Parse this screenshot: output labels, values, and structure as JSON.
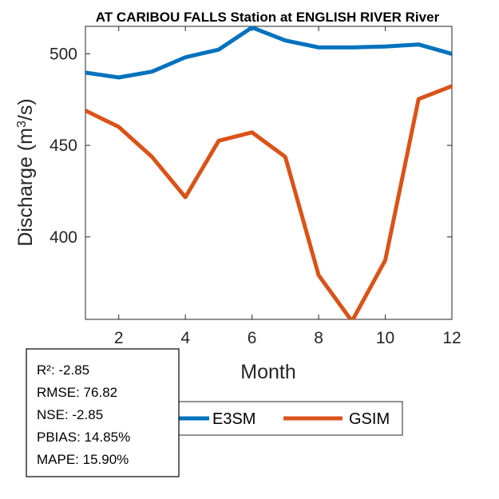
{
  "chart_data": {
    "type": "line",
    "title": "AT CARIBOU FALLS  Station at  ENGLISH RIVER  River",
    "xlabel": "Month",
    "ylabel": "Discharge (m3/s)",
    "ylabel_parts": {
      "before": "Discharge (m",
      "sup": "3",
      "after": "/s)"
    },
    "xlim": [
      1,
      12
    ],
    "ylim": [
      355,
      515
    ],
    "xticks": [
      2,
      4,
      6,
      8,
      10,
      12
    ],
    "yticks": [
      400,
      450,
      500
    ],
    "grid": false,
    "legend_position": "bottom",
    "x": [
      1,
      2,
      3,
      4,
      5,
      6,
      7,
      8,
      9,
      10,
      11,
      12
    ],
    "series": [
      {
        "name": "E3SM",
        "color": "#0072BD",
        "values": [
          489.7,
          487.1,
          490.3,
          498.1,
          502.3,
          514.4,
          507.3,
          503.5,
          503.5,
          504.0,
          505.1,
          500.0
        ]
      },
      {
        "name": "GSIM",
        "color": "#D95319",
        "values": [
          469.0,
          460.1,
          443.7,
          421.7,
          452.5,
          457.1,
          443.7,
          379.1,
          354.0,
          387.3,
          475.3,
          482.4
        ]
      }
    ],
    "stats": [
      "R²: -2.85",
      "RMSE: 76.82",
      "NSE: -2.85",
      "PBIAS: 14.85%",
      "MAPE: 15.90%"
    ]
  }
}
